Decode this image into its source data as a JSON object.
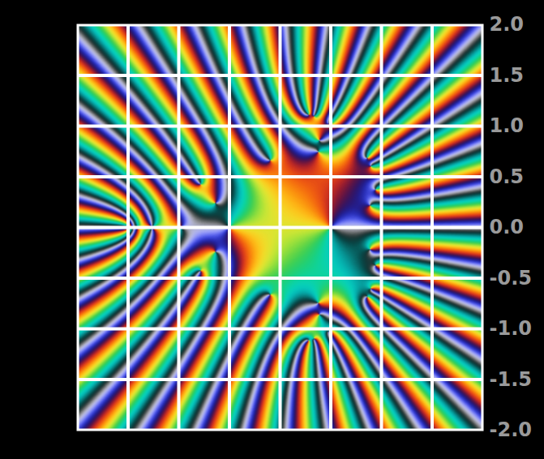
{
  "chart_data": {
    "type": "image",
    "xlim": [
      -2.5,
      1.5
    ],
    "ylim": [
      -2,
      2
    ],
    "xticks": [
      -2.5,
      -2,
      -1.5,
      -1,
      -0.5,
      0,
      0.5,
      1,
      1.5
    ],
    "yticks": [
      {
        "value": 2,
        "label": "2.0"
      },
      {
        "value": 1.5,
        "label": "1.5"
      },
      {
        "value": 1,
        "label": "1.0"
      },
      {
        "value": 0.5,
        "label": "0.5"
      },
      {
        "value": 0,
        "label": "0.0"
      },
      {
        "value": -0.5,
        "label": "-0.5"
      },
      {
        "value": -1,
        "label": "-1.0"
      },
      {
        "value": -1.5,
        "label": "-1.5"
      },
      {
        "value": -2,
        "label": "-2.0"
      }
    ],
    "grid": true,
    "tick_labels": "y"
  }
}
